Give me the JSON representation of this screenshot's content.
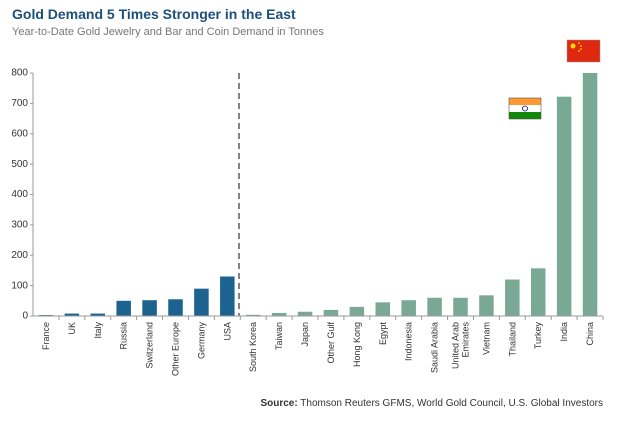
{
  "chart_data": {
    "type": "bar",
    "title": "Gold Demand 5 Times Stronger in the East",
    "subtitle": "Year-to-Date Gold Jewelry and Bar and Coin Demand in Tonnes",
    "categories": [
      "France",
      "UK",
      "Italy",
      "Russia",
      "Switzerland",
      "Other Europe",
      "Germany",
      "USA",
      "South Korea",
      "Taiwan",
      "Japan",
      "Other Gulf",
      "Hong Kong",
      "Egypt",
      "Indonesia",
      "Saudi Arabia",
      "United Arab Emirates",
      "Vietnam",
      "Thailand",
      "Turkey",
      "India",
      "China"
    ],
    "values": [
      3,
      8,
      8,
      50,
      52,
      55,
      90,
      130,
      4,
      10,
      14,
      20,
      30,
      45,
      52,
      60,
      60,
      68,
      120,
      157,
      722,
      800
    ],
    "colors": [
      "#1d6390",
      "#1d6390",
      "#1d6390",
      "#1d6390",
      "#1d6390",
      "#1d6390",
      "#1d6390",
      "#1d6390",
      "#79a895",
      "#79a895",
      "#79a895",
      "#79a895",
      "#79a895",
      "#79a895",
      "#79a895",
      "#79a895",
      "#79a895",
      "#79a895",
      "#79a895",
      "#79a895",
      "#79a895",
      "#79a895"
    ],
    "ylim": [
      0,
      800
    ],
    "yticks": [
      0,
      100,
      200,
      300,
      400,
      500,
      600,
      700,
      800
    ],
    "source_label": "Source:",
    "source": "Thomson Reuters GFMS, World Gold Council, U.S. Global Investors"
  }
}
